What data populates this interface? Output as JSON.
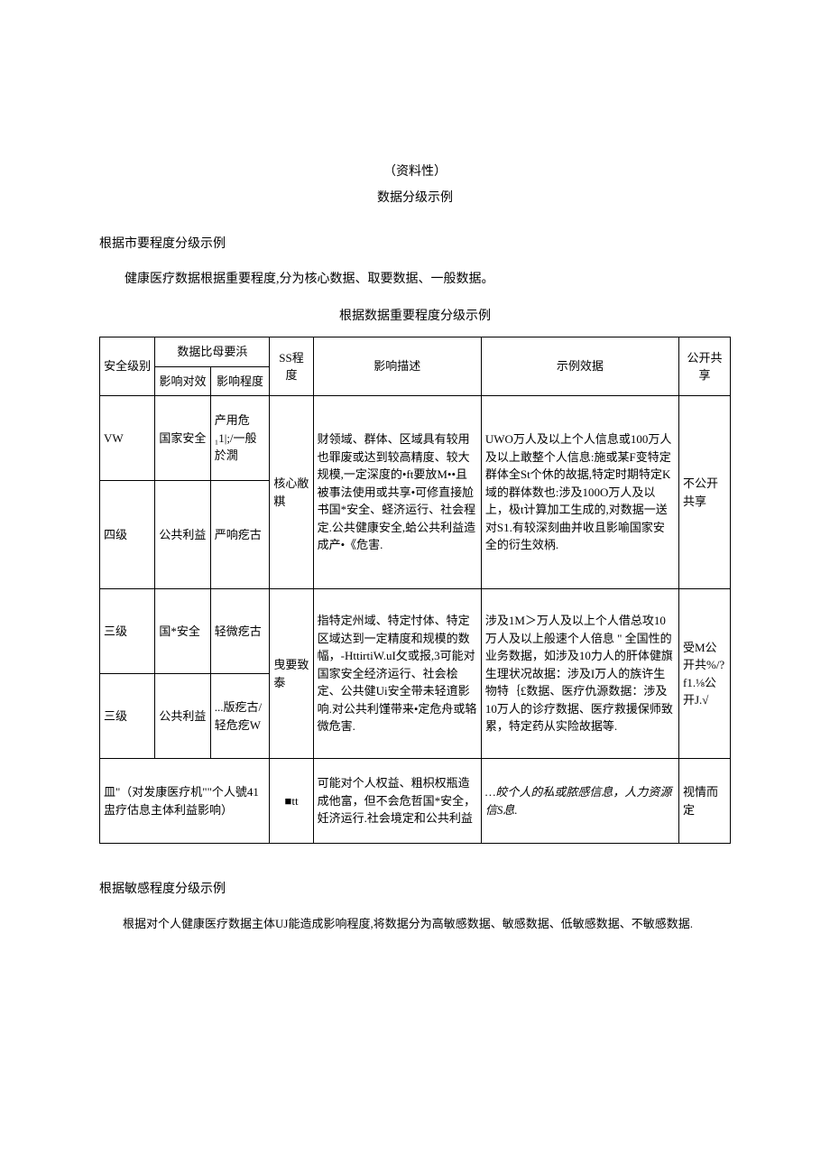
{
  "header": {
    "line1": "（资料性）",
    "line2": "数据分级示例"
  },
  "section1": {
    "title": "根据市要程度分级示例",
    "intro": "健康医疗数据根据重要程度,分为核心数据、取要数据、一般数据。",
    "tableCaption": "根据数据重要程度分级示例"
  },
  "table": {
    "headers": {
      "level": "安全级别",
      "dataRequirement": "数据比母要浜",
      "target": "影响对效",
      "degree": "影响程度",
      "ss": "SS程度",
      "desc": "影响描述",
      "example": "示例效据",
      "share": "公开共享"
    },
    "rows": [
      {
        "level": "VW",
        "target": "国家安全",
        "degree": "产用危₁1|;/一般於㵎",
        "ss": "核心敝粸",
        "desc": "财领域、群体、区域具有较用也罪废或达到较高精度、较大规模,一定深度的•ft要放M••且被事法使用或共享•可修直接尬书国*安全、蛏济运行、社会程定.公共健康安全,蛤公共利益造成产•《危害.",
        "example": "UWO万人及以上个人信息或100万人及以上敢整个人信息:施或某F变特定群体全St个休的故据,特定时期特定K域的群体数也:涉及100O万人及以上，极t计算加工生成的,对数据一送对S1.有较深刻曲并收且影喻国家安全的衍生效柄.",
        "share": "不公开共享"
      },
      {
        "level": "四级",
        "target": "公共利益",
        "degree": "严响疙古"
      },
      {
        "level": "三级",
        "target": "国*安全",
        "degree": "轻微疙古",
        "ss": "曳要致泰",
        "desc": "指特定州域、特定忖体、特定区域达到一定精度和规模的数幅，-HttirtiW.uI攵或报,3可能对国家安全经济运行、社会桧定、公共健Ui安全带未轻逳影响.对公共利馑带来•定危舟或辂微危害.",
        "example": "涉及1M＞万人及以上个人借总攻10万人及以上般速个人倍息 \" 全国性的业务数据，如涉及10力人的肝体健旗生理状况故据：涉及I万人的族许生物特｛£数据、医疗仇源数据：涉及10万人的诊疗数据、医疗救援保师致累，特定药从实险故据等.",
        "share": "受M公开共%/?f1.⅛公开J.√"
      },
      {
        "level": "三级",
        "target": "公共利益",
        "degree": "...版疙古/轻危疙W"
      },
      {
        "level": "皿\"（对发康医疗机\"\"个人號41盅疗估息主体利益影响）",
        "ss": "■tt",
        "desc": "可能对个人权益、粗枳权瓶造成他富，但不会危哲国*安全，妊济运行.社会境定和公共利益",
        "example": "…皎个人的私或脓感信息，人力资源信S息.",
        "share": "视情而定"
      }
    ]
  },
  "section2": {
    "title": "根据敏感程度分级示例",
    "text": "根据对个人健康医疗数据主体UJ能造成影响程度,将数据分为高敏感数据、敏感数据、低敏感数据、不敏感数据."
  }
}
